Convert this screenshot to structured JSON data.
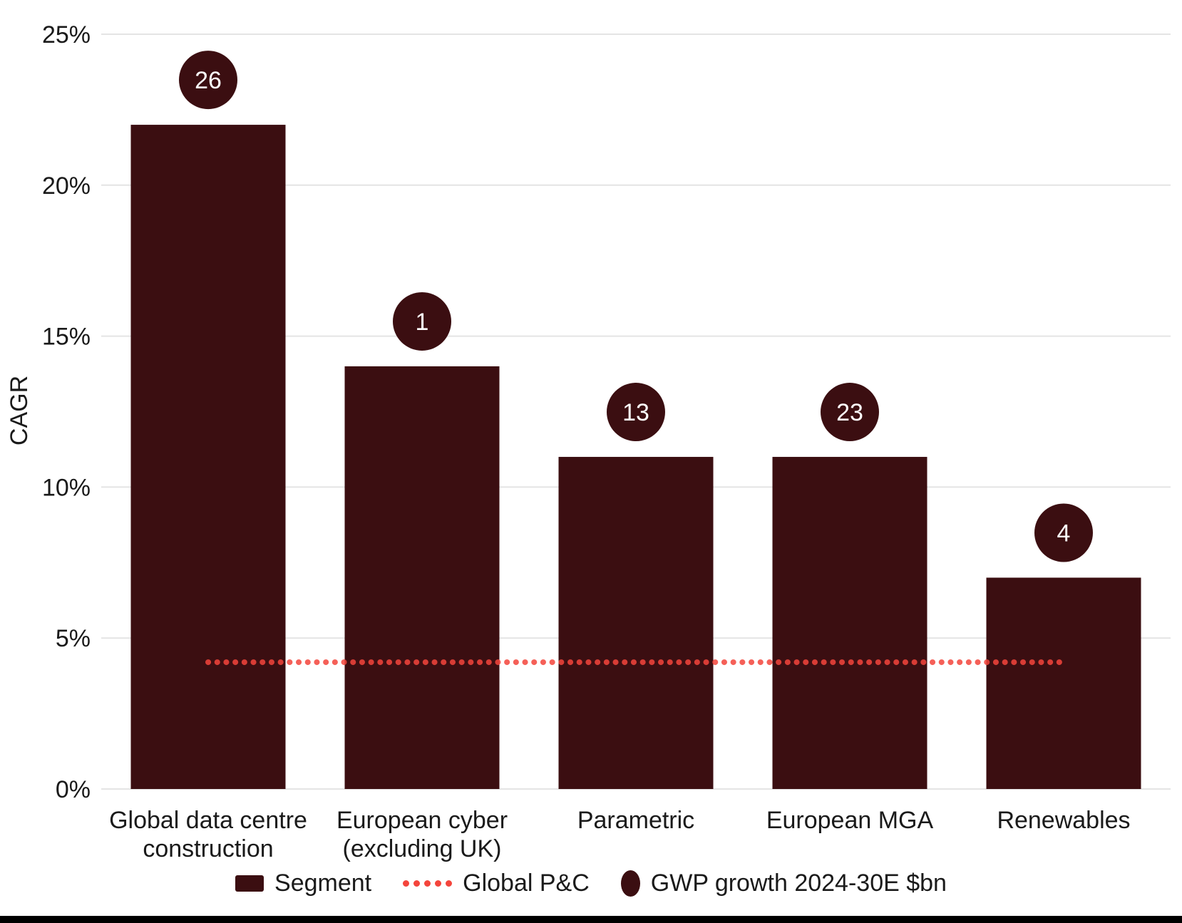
{
  "chart_data": {
    "type": "bar",
    "title": "",
    "ylabel": "CAGR",
    "xlabel": "",
    "ylim": [
      0,
      25
    ],
    "y_tick_labels": [
      "0%",
      "5%",
      "10%",
      "15%",
      "20%",
      "25%"
    ],
    "grid": "horizontal",
    "legend_position": "bottom",
    "categories": [
      {
        "name": "Global data centre construction",
        "lines": [
          "Global data centre",
          "construction"
        ]
      },
      {
        "name": "European cyber (excluding UK)",
        "lines": [
          "European cyber",
          "(excluding UK)"
        ]
      },
      {
        "name": "Parametric",
        "lines": [
          "Parametric"
        ]
      },
      {
        "name": "European MGA",
        "lines": [
          "European MGA"
        ]
      },
      {
        "name": "Renewables",
        "lines": [
          "Renewables"
        ]
      }
    ],
    "series": [
      {
        "name": "Segment",
        "type": "bar",
        "unit": "CAGR %",
        "values": [
          22,
          14,
          11,
          11,
          7
        ]
      },
      {
        "name": "Global P&C",
        "type": "dotted-line",
        "unit": "CAGR %",
        "value": 4.2
      },
      {
        "name": "GWP growth 2024-30E $bn",
        "type": "point-labels",
        "values": [
          26,
          1,
          13,
          23,
          4
        ]
      }
    ],
    "legend": [
      {
        "label": "Segment",
        "swatch": "bar"
      },
      {
        "label": "Global P&C",
        "swatch": "dotted-line"
      },
      {
        "label": "GWP growth 2024-30E $bn",
        "swatch": "circle"
      }
    ],
    "colors": {
      "bar": "#3B0E11",
      "circle": "#3B0E11",
      "dotted_line": "#F4453C",
      "gridline": "#E4E4E4",
      "text": "#1A1A1A",
      "circle_text": "#FFFFFF",
      "bottom_bar": "#000000",
      "background": "#FFFFFF"
    }
  }
}
